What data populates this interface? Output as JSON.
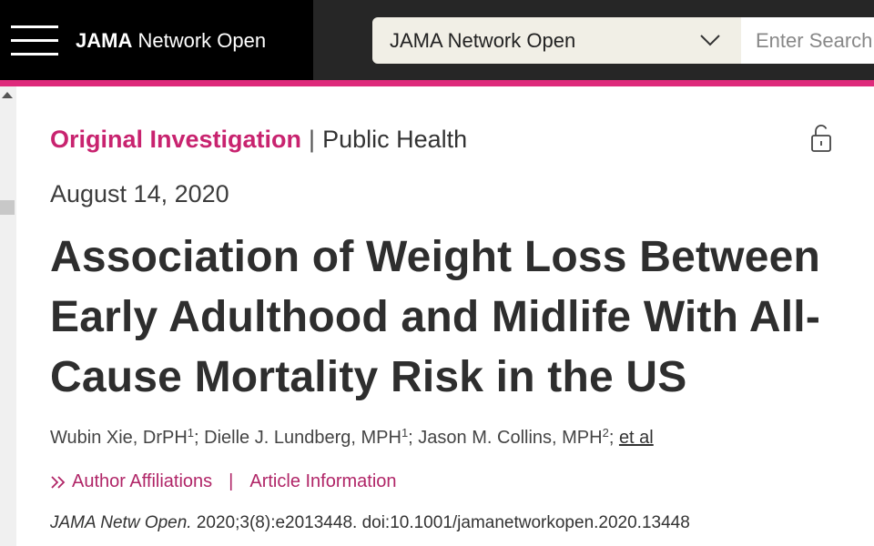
{
  "header": {
    "brand_bold": "JAMA",
    "brand_rest": "Network Open",
    "journal_select_value": "JAMA Network Open",
    "search_placeholder": "Enter Search"
  },
  "article": {
    "category_type": "Original Investigation",
    "category_separator": "|",
    "category_topic": "Public Health",
    "date": "August 14, 2020",
    "title": "Association of Weight Loss Between Early Adulthood and Midlife With All-Cause Mortality Risk in the US",
    "authors": [
      {
        "name": "Wubin Xie, DrPH",
        "aff": "1"
      },
      {
        "name": "Dielle J. Lundberg, MPH",
        "aff": "1"
      },
      {
        "name": "Jason M. Collins, MPH",
        "aff": "2"
      }
    ],
    "author_separator": ";",
    "et_al": "et al",
    "links": {
      "author_affiliations": "Author Affiliations",
      "divider": "|",
      "article_information": "Article Information"
    },
    "citation": {
      "journal": "JAMA Netw Open.",
      "details": "2020;3(8):e2013448. doi:10.1001/jamanetworkopen.2020.13448"
    }
  },
  "icons": {
    "menu": "hamburger-menu-icon",
    "select": "chevron-down-icon",
    "access": "unlock-icon",
    "links": "double-chevron-right-icon"
  },
  "colors": {
    "accent": "#de2a7b",
    "category": "#c8236f",
    "link": "#b02567"
  }
}
